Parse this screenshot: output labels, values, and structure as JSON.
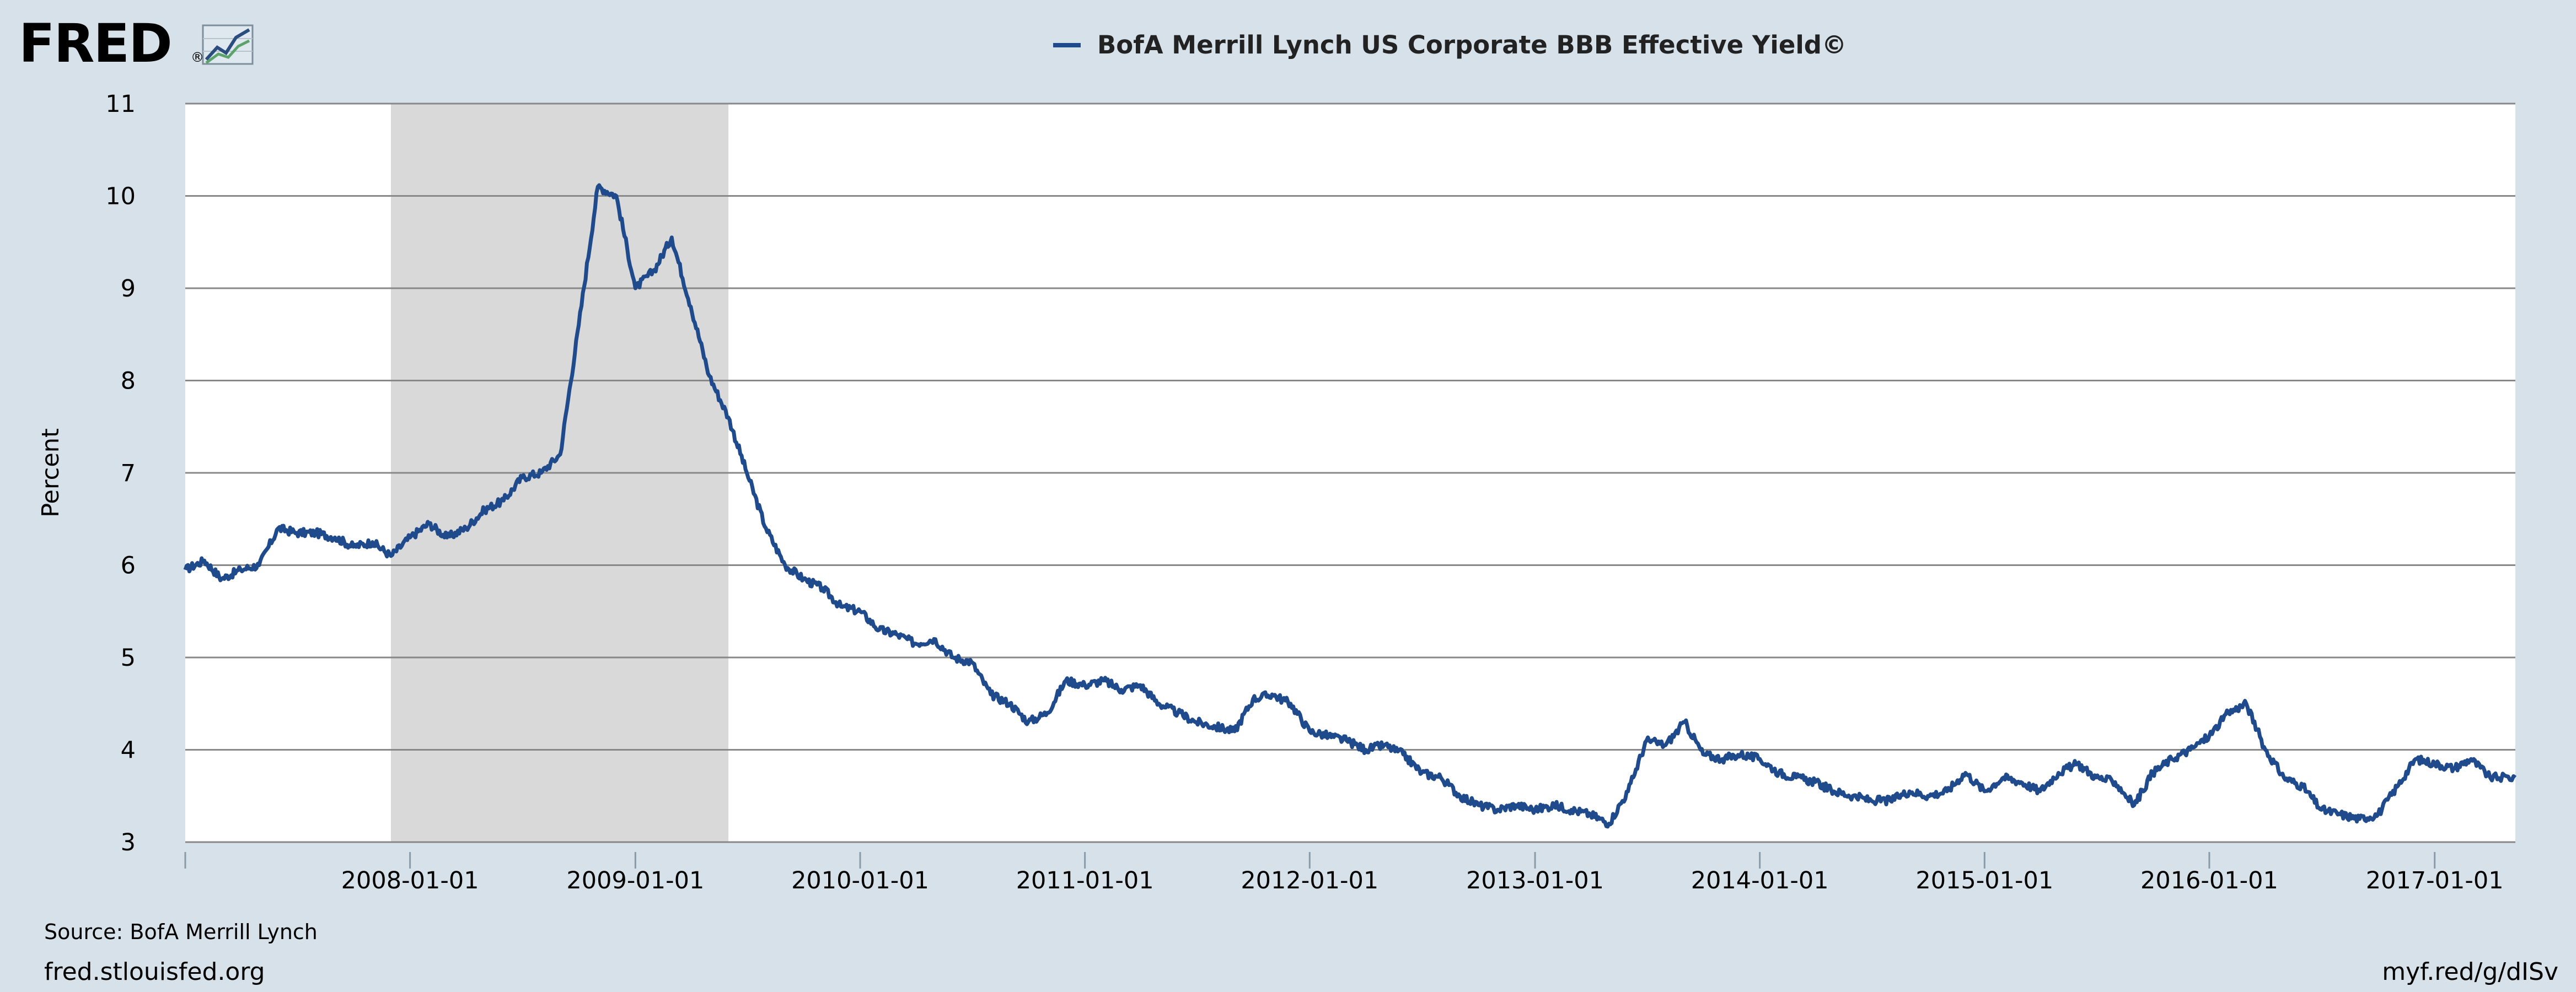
{
  "brand": {
    "name": "FRED",
    "registered": "®"
  },
  "source": "Source: BofA Merrill Lynch",
  "footer": {
    "left": "fred.stlouisfed.org",
    "right": "myf.red/g/dISv"
  },
  "colors": {
    "background": "#d6e1ea",
    "plot": "#ffffff",
    "series": "#1f4a8c",
    "recession": "#d9d9d9",
    "grid": "#888888"
  },
  "chart_data": {
    "type": "line",
    "title": "",
    "legend": [
      "BofA Merrill Lynch US Corporate BBB Effective Yield©"
    ],
    "legend_position": "top-center",
    "ylabel": "Percent",
    "xlabel": "",
    "ylim": [
      3,
      11
    ],
    "yticks": [
      "3",
      "4",
      "5",
      "6",
      "7",
      "8",
      "9",
      "10",
      "11"
    ],
    "xlim": [
      "2007-01-01",
      "2017-05-12"
    ],
    "xticks": [
      "2008-01-01",
      "2009-01-01",
      "2010-01-01",
      "2011-01-01",
      "2012-01-01",
      "2013-01-01",
      "2014-01-01",
      "2015-01-01",
      "2016-01-01",
      "2017-01-01"
    ],
    "grid": true,
    "recession_shading": [
      {
        "start": "2007-12-01",
        "end": "2009-06-01"
      }
    ],
    "series": [
      {
        "name": "BofA Merrill Lynch US Corporate BBB Effective Yield©",
        "points": [
          [
            "2007-01-01",
            5.95
          ],
          [
            "2007-02-01",
            6.05
          ],
          [
            "2007-03-01",
            5.85
          ],
          [
            "2007-04-01",
            5.95
          ],
          [
            "2007-05-01",
            6.0
          ],
          [
            "2007-06-01",
            6.4
          ],
          [
            "2007-07-01",
            6.35
          ],
          [
            "2007-08-01",
            6.35
          ],
          [
            "2007-09-01",
            6.3
          ],
          [
            "2007-10-01",
            6.2
          ],
          [
            "2007-11-01",
            6.25
          ],
          [
            "2007-12-01",
            6.1
          ],
          [
            "2008-01-01",
            6.3
          ],
          [
            "2008-02-01",
            6.45
          ],
          [
            "2008-03-01",
            6.3
          ],
          [
            "2008-04-01",
            6.4
          ],
          [
            "2008-05-01",
            6.6
          ],
          [
            "2008-06-01",
            6.7
          ],
          [
            "2008-07-01",
            6.95
          ],
          [
            "2008-08-01",
            7.0
          ],
          [
            "2008-09-01",
            7.2
          ],
          [
            "2008-10-01",
            8.6
          ],
          [
            "2008-11-01",
            10.1
          ],
          [
            "2008-12-01",
            10.0
          ],
          [
            "2009-01-01",
            9.0
          ],
          [
            "2009-02-01",
            9.2
          ],
          [
            "2009-03-01",
            9.55
          ],
          [
            "2009-04-01",
            8.8
          ],
          [
            "2009-05-01",
            8.05
          ],
          [
            "2009-06-01",
            7.6
          ],
          [
            "2009-07-01",
            7.0
          ],
          [
            "2009-08-01",
            6.4
          ],
          [
            "2009-09-01",
            6.0
          ],
          [
            "2009-10-01",
            5.85
          ],
          [
            "2009-11-01",
            5.75
          ],
          [
            "2009-12-01",
            5.55
          ],
          [
            "2010-01-01",
            5.5
          ],
          [
            "2010-02-01",
            5.3
          ],
          [
            "2010-03-01",
            5.25
          ],
          [
            "2010-04-01",
            5.15
          ],
          [
            "2010-05-01",
            5.2
          ],
          [
            "2010-06-01",
            5.0
          ],
          [
            "2010-07-01",
            4.95
          ],
          [
            "2010-08-01",
            4.6
          ],
          [
            "2010-09-01",
            4.5
          ],
          [
            "2010-10-01",
            4.3
          ],
          [
            "2010-11-01",
            4.4
          ],
          [
            "2010-12-01",
            4.75
          ],
          [
            "2011-01-01",
            4.7
          ],
          [
            "2011-02-01",
            4.75
          ],
          [
            "2011-03-01",
            4.65
          ],
          [
            "2011-04-01",
            4.7
          ],
          [
            "2011-05-01",
            4.5
          ],
          [
            "2011-06-01",
            4.4
          ],
          [
            "2011-07-01",
            4.3
          ],
          [
            "2011-08-01",
            4.25
          ],
          [
            "2011-09-01",
            4.2
          ],
          [
            "2011-10-01",
            4.55
          ],
          [
            "2011-11-01",
            4.6
          ],
          [
            "2011-12-01",
            4.5
          ],
          [
            "2012-01-01",
            4.2
          ],
          [
            "2012-02-01",
            4.15
          ],
          [
            "2012-03-01",
            4.1
          ],
          [
            "2012-04-01",
            4.0
          ],
          [
            "2012-05-01",
            4.05
          ],
          [
            "2012-06-01",
            3.95
          ],
          [
            "2012-07-01",
            3.75
          ],
          [
            "2012-08-01",
            3.7
          ],
          [
            "2012-09-01",
            3.5
          ],
          [
            "2012-10-01",
            3.4
          ],
          [
            "2012-11-01",
            3.35
          ],
          [
            "2012-12-01",
            3.4
          ],
          [
            "2013-01-01",
            3.35
          ],
          [
            "2013-02-01",
            3.4
          ],
          [
            "2013-03-01",
            3.35
          ],
          [
            "2013-04-01",
            3.3
          ],
          [
            "2013-05-01",
            3.2
          ],
          [
            "2013-06-01",
            3.55
          ],
          [
            "2013-07-01",
            4.1
          ],
          [
            "2013-08-01",
            4.05
          ],
          [
            "2013-09-01",
            4.3
          ],
          [
            "2013-10-01",
            3.95
          ],
          [
            "2013-11-01",
            3.9
          ],
          [
            "2013-12-01",
            3.95
          ],
          [
            "2014-01-01",
            3.9
          ],
          [
            "2014-02-01",
            3.75
          ],
          [
            "2014-03-01",
            3.7
          ],
          [
            "2014-04-01",
            3.65
          ],
          [
            "2014-05-01",
            3.55
          ],
          [
            "2014-06-01",
            3.5
          ],
          [
            "2014-07-01",
            3.45
          ],
          [
            "2014-08-01",
            3.45
          ],
          [
            "2014-09-01",
            3.55
          ],
          [
            "2014-10-01",
            3.5
          ],
          [
            "2014-11-01",
            3.55
          ],
          [
            "2014-12-01",
            3.75
          ],
          [
            "2015-01-01",
            3.55
          ],
          [
            "2015-02-01",
            3.7
          ],
          [
            "2015-03-01",
            3.65
          ],
          [
            "2015-04-01",
            3.55
          ],
          [
            "2015-05-01",
            3.75
          ],
          [
            "2015-06-01",
            3.85
          ],
          [
            "2015-07-01",
            3.7
          ],
          [
            "2015-08-01",
            3.65
          ],
          [
            "2015-09-01",
            3.4
          ],
          [
            "2015-10-01",
            3.75
          ],
          [
            "2015-11-01",
            3.9
          ],
          [
            "2015-12-01",
            4.0
          ],
          [
            "2016-01-01",
            4.15
          ],
          [
            "2016-02-01",
            4.4
          ],
          [
            "2016-03-01",
            4.5
          ],
          [
            "2016-04-01",
            4.0
          ],
          [
            "2016-05-01",
            3.7
          ],
          [
            "2016-06-01",
            3.6
          ],
          [
            "2016-07-01",
            3.35
          ],
          [
            "2016-08-01",
            3.3
          ],
          [
            "2016-09-01",
            3.25
          ],
          [
            "2016-10-01",
            3.3
          ],
          [
            "2016-11-01",
            3.6
          ],
          [
            "2016-12-01",
            3.9
          ],
          [
            "2017-01-01",
            3.85
          ],
          [
            "2017-02-01",
            3.8
          ],
          [
            "2017-03-01",
            3.9
          ],
          [
            "2017-04-01",
            3.7
          ],
          [
            "2017-05-12",
            3.7
          ]
        ]
      }
    ]
  }
}
